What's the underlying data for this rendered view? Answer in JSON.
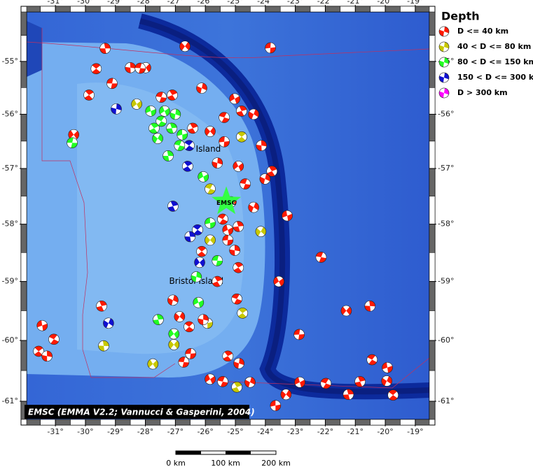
{
  "map": {
    "lonlim": [
      -31.96,
      -18.53
    ],
    "latlim": [
      -54.04,
      -61.27
    ],
    "lon_ticks": [
      {
        "value": -31,
        "label": "-31°"
      },
      {
        "value": -30,
        "label": "-30°"
      },
      {
        "value": -29,
        "label": "-29°"
      },
      {
        "value": -28,
        "label": "-28°"
      },
      {
        "value": -27,
        "label": "-27°"
      },
      {
        "value": -26,
        "label": "-26°"
      },
      {
        "value": -25,
        "label": "-25°"
      },
      {
        "value": -24,
        "label": "-24°"
      },
      {
        "value": -23,
        "label": "-23°"
      },
      {
        "value": -22,
        "label": "-22°"
      },
      {
        "value": -21,
        "label": "-21°"
      },
      {
        "value": -20,
        "label": "-20°"
      },
      {
        "value": -19,
        "label": "-19°"
      }
    ],
    "lat_ticks": [
      {
        "value": -55,
        "label": "-55°"
      },
      {
        "value": -56,
        "label": "-56°"
      },
      {
        "value": -57,
        "label": "-57°"
      },
      {
        "value": -58,
        "label": "-58°"
      },
      {
        "value": -59,
        "label": "-59°"
      },
      {
        "value": -60,
        "label": "-60°"
      },
      {
        "value": -61,
        "label": "-61°"
      }
    ],
    "places": [
      {
        "label": "Island",
        "lon": -25.9,
        "lat": -56.65
      },
      {
        "label": "Bristol Island",
        "lon": -26.3,
        "lat": -59.0
      }
    ],
    "epicenter": {
      "label": "EMSC",
      "lon": -25.3,
      "lat": -57.6
    },
    "credit": "EMSC (EMMA V2.2; Vannucci & Gasperini, 2004)",
    "scale_labels": [
      "0 km",
      "100 km",
      "200 km"
    ]
  },
  "legend": {
    "title": "Depth",
    "entries": [
      {
        "label": "D <= 40 km",
        "color": "#ff1a00"
      },
      {
        "label": "40 < D <= 80 km",
        "color": "#c8c800"
      },
      {
        "label": "80 < D <= 150 km",
        "color": "#22ff22"
      },
      {
        "label": "150 < D <= 300 km",
        "color": "#1010d0"
      },
      {
        "label": "D > 300 km",
        "color": "#ff00ff"
      }
    ]
  },
  "events": [
    {
      "lon": -29.34,
      "lat": -54.75,
      "depth": 0
    },
    {
      "lon": -26.68,
      "lat": -54.71,
      "depth": 0
    },
    {
      "lon": -23.83,
      "lat": -54.74,
      "depth": 0
    },
    {
      "lon": -29.64,
      "lat": -55.14,
      "depth": 0
    },
    {
      "lon": -28.5,
      "lat": -55.12,
      "depth": 0
    },
    {
      "lon": -27.99,
      "lat": -55.12,
      "depth": 0
    },
    {
      "lon": -29.11,
      "lat": -55.42,
      "depth": 0
    },
    {
      "lon": -29.88,
      "lat": -55.64,
      "depth": 0
    },
    {
      "lon": -28.97,
      "lat": -55.9,
      "depth": 3
    },
    {
      "lon": -28.29,
      "lat": -55.81,
      "depth": 1
    },
    {
      "lon": -27.47,
      "lat": -55.68,
      "depth": 0
    },
    {
      "lon": -27.1,
      "lat": -55.64,
      "depth": 0
    },
    {
      "lon": -26.12,
      "lat": -55.51,
      "depth": 0
    },
    {
      "lon": -25.02,
      "lat": -55.71,
      "depth": 0
    },
    {
      "lon": -25.37,
      "lat": -56.06,
      "depth": 0
    },
    {
      "lon": -24.79,
      "lat": -55.94,
      "depth": 0
    },
    {
      "lon": -24.39,
      "lat": -56.0,
      "depth": 0
    },
    {
      "lon": -27.82,
      "lat": -55.94,
      "depth": 2
    },
    {
      "lon": -27.47,
      "lat": -56.13,
      "depth": 2
    },
    {
      "lon": -27.12,
      "lat": -56.26,
      "depth": 2
    },
    {
      "lon": -27.59,
      "lat": -56.45,
      "depth": 2
    },
    {
      "lon": -26.77,
      "lat": -56.38,
      "depth": 2
    },
    {
      "lon": -26.54,
      "lat": -56.58,
      "depth": 3
    },
    {
      "lon": -27.24,
      "lat": -56.77,
      "depth": 2
    },
    {
      "lon": -25.84,
      "lat": -56.32,
      "depth": 0
    },
    {
      "lon": -25.37,
      "lat": -56.51,
      "depth": 0
    },
    {
      "lon": -24.79,
      "lat": -56.42,
      "depth": 1
    },
    {
      "lon": -24.13,
      "lat": -56.58,
      "depth": 0
    },
    {
      "lon": -30.39,
      "lat": -56.38,
      "depth": 0
    },
    {
      "lon": -30.44,
      "lat": -56.53,
      "depth": 2
    },
    {
      "lon": -26.59,
      "lat": -56.96,
      "depth": 3
    },
    {
      "lon": -25.6,
      "lat": -56.9,
      "depth": 0
    },
    {
      "lon": -24.9,
      "lat": -56.96,
      "depth": 0
    },
    {
      "lon": -24.67,
      "lat": -57.28,
      "depth": 0
    },
    {
      "lon": -23.78,
      "lat": -57.05,
      "depth": 0
    },
    {
      "lon": -24.01,
      "lat": -57.19,
      "depth": 0
    },
    {
      "lon": -26.07,
      "lat": -57.15,
      "depth": 2
    },
    {
      "lon": -25.84,
      "lat": -57.37,
      "depth": 1
    },
    {
      "lon": -27.08,
      "lat": -57.68,
      "depth": 3
    },
    {
      "lon": -24.39,
      "lat": -57.7,
      "depth": 0
    },
    {
      "lon": -23.27,
      "lat": -57.85,
      "depth": 0
    },
    {
      "lon": -25.42,
      "lat": -57.91,
      "depth": 0
    },
    {
      "lon": -24.9,
      "lat": -58.04,
      "depth": 0
    },
    {
      "lon": -24.15,
      "lat": -58.13,
      "depth": 1
    },
    {
      "lon": -25.84,
      "lat": -57.98,
      "depth": 2
    },
    {
      "lon": -26.26,
      "lat": -58.1,
      "depth": 3
    },
    {
      "lon": -26.51,
      "lat": -58.22,
      "depth": 3
    },
    {
      "lon": -25.84,
      "lat": -58.28,
      "depth": 1
    },
    {
      "lon": -25.25,
      "lat": -58.28,
      "depth": 0
    },
    {
      "lon": -26.12,
      "lat": -58.48,
      "depth": 0
    },
    {
      "lon": -25.02,
      "lat": -58.46,
      "depth": 0
    },
    {
      "lon": -26.19,
      "lat": -58.67,
      "depth": 3
    },
    {
      "lon": -25.6,
      "lat": -58.64,
      "depth": 2
    },
    {
      "lon": -24.9,
      "lat": -58.76,
      "depth": 0
    },
    {
      "lon": -26.3,
      "lat": -58.92,
      "depth": 2
    },
    {
      "lon": -23.55,
      "lat": -59.0,
      "depth": 0
    },
    {
      "lon": -22.14,
      "lat": -58.58,
      "depth": 0
    },
    {
      "lon": -25.6,
      "lat": -59.0,
      "depth": 0
    },
    {
      "lon": -27.08,
      "lat": -59.32,
      "depth": 0
    },
    {
      "lon": -26.23,
      "lat": -59.36,
      "depth": 2
    },
    {
      "lon": -24.95,
      "lat": -59.3,
      "depth": 0
    },
    {
      "lon": -29.46,
      "lat": -59.42,
      "depth": 0
    },
    {
      "lon": -29.23,
      "lat": -59.71,
      "depth": 3
    },
    {
      "lon": -31.44,
      "lat": -59.75,
      "depth": 0
    },
    {
      "lon": -31.05,
      "lat": -59.98,
      "depth": 0
    },
    {
      "lon": -27.57,
      "lat": -59.65,
      "depth": 2
    },
    {
      "lon": -26.86,
      "lat": -59.6,
      "depth": 0
    },
    {
      "lon": -25.93,
      "lat": -59.71,
      "depth": 1
    },
    {
      "lon": -26.54,
      "lat": -59.77,
      "depth": 0
    },
    {
      "lon": -29.39,
      "lat": -60.09,
      "depth": 1
    },
    {
      "lon": -27.05,
      "lat": -60.07,
      "depth": 1
    },
    {
      "lon": -26.49,
      "lat": -60.22,
      "depth": 0
    },
    {
      "lon": -31.56,
      "lat": -60.18,
      "depth": 0
    },
    {
      "lon": -31.28,
      "lat": -60.26,
      "depth": 0
    },
    {
      "lon": -27.75,
      "lat": -60.39,
      "depth": 1
    },
    {
      "lon": -26.72,
      "lat": -60.36,
      "depth": 0
    },
    {
      "lon": -25.25,
      "lat": -60.26,
      "depth": 0
    },
    {
      "lon": -24.88,
      "lat": -60.38,
      "depth": 0
    },
    {
      "lon": -25.84,
      "lat": -60.64,
      "depth": 0
    },
    {
      "lon": -25.42,
      "lat": -60.68,
      "depth": 0
    },
    {
      "lon": -24.95,
      "lat": -60.77,
      "depth": 1
    },
    {
      "lon": -24.51,
      "lat": -60.69,
      "depth": 0
    },
    {
      "lon": -22.85,
      "lat": -60.69,
      "depth": 0
    },
    {
      "lon": -21.98,
      "lat": -60.71,
      "depth": 0
    },
    {
      "lon": -20.84,
      "lat": -60.68,
      "depth": 0
    },
    {
      "lon": -19.95,
      "lat": -60.67,
      "depth": 0
    },
    {
      "lon": -19.93,
      "lat": -60.45,
      "depth": 0
    },
    {
      "lon": -20.44,
      "lat": -60.32,
      "depth": 0
    },
    {
      "lon": -21.23,
      "lat": -60.89,
      "depth": 0
    },
    {
      "lon": -23.31,
      "lat": -60.89,
      "depth": 0
    },
    {
      "lon": -23.66,
      "lat": -61.07,
      "depth": 0
    },
    {
      "lon": -19.74,
      "lat": -60.9,
      "depth": 0
    },
    {
      "lon": -20.51,
      "lat": -59.42,
      "depth": 0
    },
    {
      "lon": -21.3,
      "lat": -59.5,
      "depth": 0
    },
    {
      "lon": -22.87,
      "lat": -59.9,
      "depth": 0
    },
    {
      "lon": -24.76,
      "lat": -59.54,
      "depth": 1
    },
    {
      "lon": -26.07,
      "lat": -59.65,
      "depth": 0
    },
    {
      "lon": -27.05,
      "lat": -59.89,
      "depth": 2
    },
    {
      "lon": -28.17,
      "lat": -55.13,
      "depth": 0
    },
    {
      "lon": -27.71,
      "lat": -56.26,
      "depth": 2
    },
    {
      "lon": -27.0,
      "lat": -56.0,
      "depth": 2
    },
    {
      "lon": -27.36,
      "lat": -55.94,
      "depth": 2
    },
    {
      "lon": -26.86,
      "lat": -56.58,
      "depth": 2
    },
    {
      "lon": -26.42,
      "lat": -56.26,
      "depth": 0
    },
    {
      "lon": -25.14,
      "lat": -57.6,
      "depth": 0
    },
    {
      "lon": -25.25,
      "lat": -58.1,
      "depth": 0
    }
  ]
}
